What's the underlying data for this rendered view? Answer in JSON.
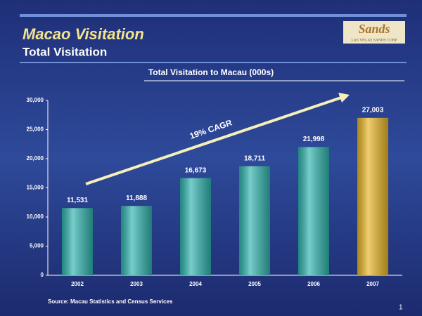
{
  "logo": {
    "name": "Sands",
    "tagline": "LAS VEGAS SANDS CORP"
  },
  "header": {
    "title": "Macao Visitation",
    "subtitle": "Total Visitation"
  },
  "chart_data": {
    "type": "bar",
    "title": "Total Visitation to Macau (000s)",
    "categories": [
      "2002",
      "2003",
      "2004",
      "2005",
      "2006",
      "2007"
    ],
    "values": [
      11531,
      11888,
      16673,
      18711,
      21998,
      27003
    ],
    "value_labels": [
      "11,531",
      "11,888",
      "16,673",
      "18,711",
      "21,998",
      "27,003"
    ],
    "colors": [
      "#2fb3ad",
      "#2fb3ad",
      "#2fb3ad",
      "#2fb3ad",
      "#2fb3ad",
      "#e7b526"
    ],
    "ylim": [
      0,
      30000
    ],
    "yticks": [
      0,
      {
        "value": 5000,
        "label": "5,000"
      },
      {
        "value": 10000,
        "label": "10,000"
      },
      {
        "value": 15000,
        "label": "15,000"
      },
      {
        "value": 20000,
        "label": "20,000"
      },
      {
        "value": 25000,
        "label": "25,000"
      },
      {
        "value": 30000,
        "label": "30,000"
      }
    ],
    "annotation": "19% CAGR",
    "source": "Source:  Macau Statistics and Census Services"
  },
  "page_number": "1"
}
